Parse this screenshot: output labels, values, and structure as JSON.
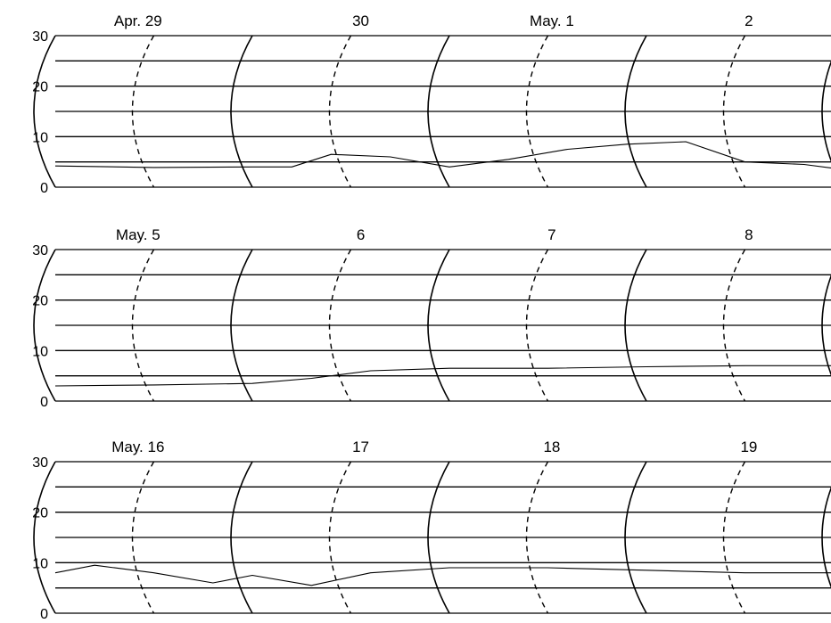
{
  "chart_data": [
    {
      "type": "line",
      "ylim": [
        0,
        30
      ],
      "yticks": [
        "0",
        "10",
        "20",
        "30"
      ],
      "day_labels": [
        "Apr. 29",
        "30",
        "May. 1",
        "2"
      ],
      "series": [
        {
          "x": [
            0,
            0.5,
            1.0,
            1.2,
            1.4,
            1.7,
            2.0,
            2.3,
            2.6,
            2.9,
            3.2,
            3.5,
            3.8,
            4.0
          ],
          "values": [
            4.2,
            3.9,
            4.0,
            4.0,
            6.5,
            6.0,
            4.0,
            5.5,
            7.5,
            8.5,
            9.0,
            5.0,
            4.5,
            3.5
          ]
        }
      ]
    },
    {
      "type": "line",
      "ylim": [
        0,
        30
      ],
      "yticks": [
        "0",
        "10",
        "20",
        "30"
      ],
      "day_labels": [
        "May. 5",
        "6",
        "7",
        "8"
      ],
      "series": [
        {
          "x": [
            0,
            0.5,
            1.0,
            1.3,
            1.6,
            2.0,
            2.5,
            3.0,
            3.5,
            4.0
          ],
          "values": [
            3.0,
            3.2,
            3.5,
            4.5,
            6.0,
            6.5,
            6.5,
            6.8,
            7.0,
            7.0
          ]
        }
      ]
    },
    {
      "type": "line",
      "ylim": [
        0,
        30
      ],
      "yticks": [
        "0",
        "10",
        "20",
        "30"
      ],
      "day_labels": [
        "May. 16",
        "17",
        "18",
        "19"
      ],
      "series": [
        {
          "x": [
            0,
            0.2,
            0.5,
            0.8,
            1.0,
            1.3,
            1.6,
            2.0,
            2.5,
            3.0,
            3.5,
            4.0
          ],
          "values": [
            8.0,
            9.5,
            8.0,
            6.0,
            7.5,
            5.5,
            8.0,
            9.0,
            9.0,
            8.5,
            8.0,
            8.0
          ]
        }
      ]
    }
  ]
}
